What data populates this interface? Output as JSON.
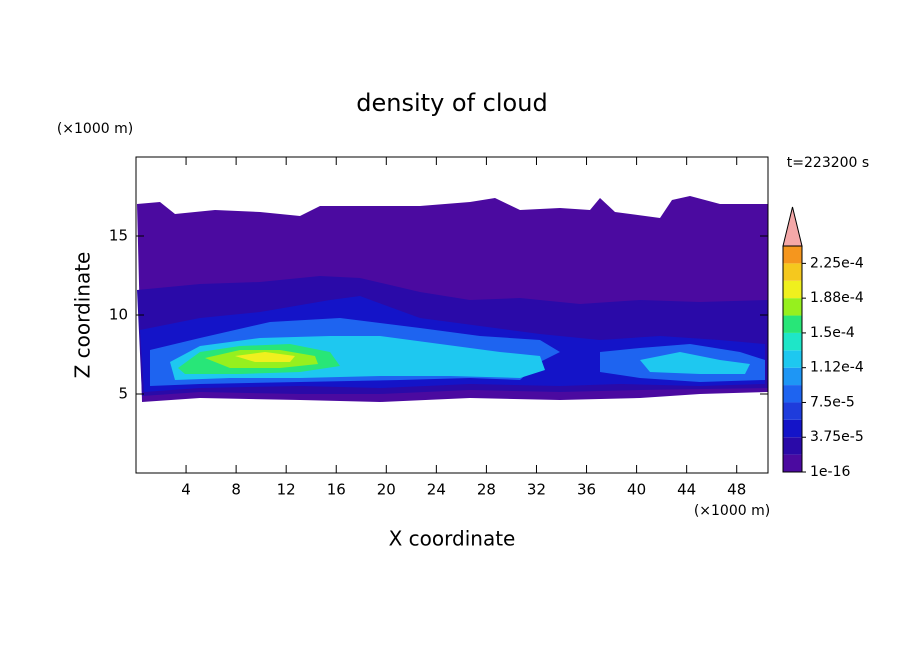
{
  "chart_data": {
    "type": "contour",
    "title": "density of cloud",
    "x_label": "X coordinate",
    "y_label": "Z coordinate",
    "x_unit": "(×1000 m)",
    "y_unit": "(×1000 m)",
    "time_label": "t=223200 s",
    "xlim": [
      0,
      50.5
    ],
    "ylim": [
      0,
      20
    ],
    "xticks": [
      4,
      8,
      12,
      16,
      20,
      24,
      28,
      32,
      36,
      40,
      44,
      48
    ],
    "yticks": [
      5,
      10,
      15
    ],
    "colorbar": {
      "clim": [
        1e-16,
        0.00024375
      ],
      "colors": [
        "#4b0aa0",
        "#2a0aa8",
        "#1414c8",
        "#1e3cdc",
        "#1e64f0",
        "#1e96f5",
        "#1ec8f0",
        "#1ee6c8",
        "#28e678",
        "#96f01e",
        "#f0f01e",
        "#f5c81e",
        "#f5961e",
        "#f5641e",
        "#f01e1e"
      ],
      "levels": [
        1e-16,
        1.875e-05,
        3.75e-05,
        5.625e-05,
        7.5e-05,
        9.375e-05,
        0.0001125,
        0.00013125,
        0.00015,
        0.00016875,
        0.0001875,
        0.00020625,
        0.000225,
        0.00024375
      ],
      "ticks": [
        {
          "value": 1e-16,
          "label": "1e-16"
        },
        {
          "value": 3.75e-05,
          "label": "3.75e-5"
        },
        {
          "value": 7.5e-05,
          "label": "7.5e-5"
        },
        {
          "value": 0.0001125,
          "label": "1.12e-4"
        },
        {
          "value": 0.00015,
          "label": "1.5e-4"
        },
        {
          "value": 0.0001875,
          "label": "1.88e-4"
        },
        {
          "value": 0.000225,
          "label": "2.25e-4"
        }
      ],
      "extend_color": "#f4a8a8"
    }
  }
}
